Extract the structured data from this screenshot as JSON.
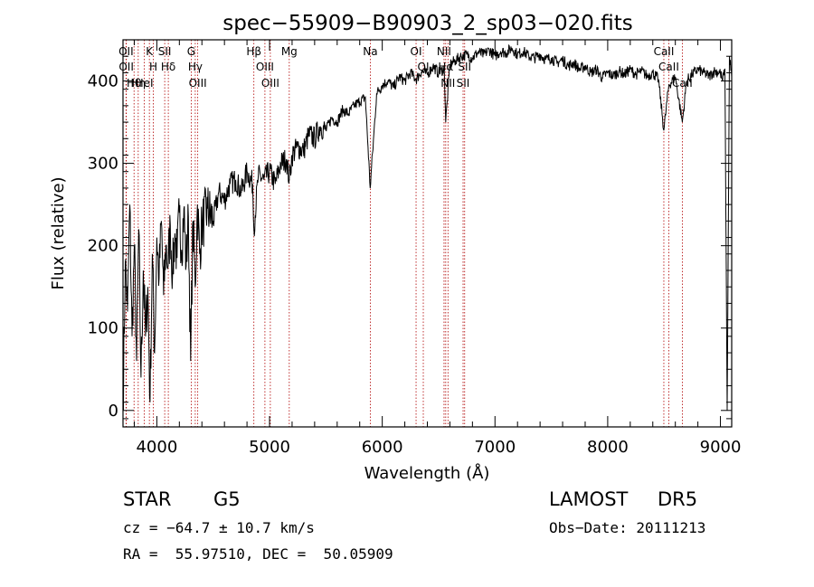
{
  "chart_data": {
    "type": "line",
    "title": "spec−55909−B90903_2_sp03−020.fits",
    "xlabel": "Wavelength (Å)",
    "ylabel": "Flux (relative)",
    "xlim": [
      3700,
      9100
    ],
    "ylim": [
      -20,
      450
    ],
    "x_ticks": [
      4000,
      5000,
      6000,
      7000,
      8000,
      9000
    ],
    "y_ticks": [
      0,
      100,
      200,
      300,
      400
    ],
    "grid": false,
    "series": [
      {
        "color": "#000000",
        "x": [
          3700,
          3720,
          3740,
          3760,
          3780,
          3800,
          3820,
          3840,
          3860,
          3880,
          3900,
          3920,
          3940,
          3960,
          3980,
          4000,
          4020,
          4040,
          4060,
          4080,
          4100,
          4120,
          4140,
          4160,
          4180,
          4200,
          4220,
          4240,
          4260,
          4280,
          4300,
          4320,
          4340,
          4360,
          4380,
          4400,
          4450,
          4500,
          4550,
          4600,
          4650,
          4700,
          4750,
          4800,
          4850,
          4861,
          4900,
          4950,
          5000,
          5050,
          5100,
          5150,
          5175,
          5200,
          5250,
          5300,
          5350,
          5400,
          5450,
          5500,
          5550,
          5600,
          5650,
          5700,
          5750,
          5800,
          5850,
          5893,
          5950,
          6000,
          6050,
          6100,
          6150,
          6200,
          6250,
          6300,
          6350,
          6400,
          6450,
          6500,
          6550,
          6563,
          6600,
          6650,
          6700,
          6750,
          6800,
          6850,
          6900,
          6950,
          7000,
          7050,
          7100,
          7150,
          7200,
          7250,
          7300,
          7350,
          7400,
          7450,
          7500,
          7550,
          7600,
          7650,
          7700,
          7750,
          7800,
          7850,
          7900,
          7950,
          8000,
          8050,
          8100,
          8150,
          8200,
          8250,
          8300,
          8350,
          8400,
          8450,
          8498,
          8542,
          8600,
          8662,
          8700,
          8750,
          8800,
          8850,
          8900,
          8950,
          9000,
          9020,
          9040,
          9060,
          9080,
          9100
        ],
        "y": [
          0,
          180,
          120,
          250,
          90,
          200,
          60,
          220,
          40,
          170,
          90,
          150,
          10,
          190,
          70,
          210,
          160,
          230,
          140,
          200,
          175,
          225,
          165,
          215,
          185,
          240,
          195,
          245,
          175,
          235,
          60,
          230,
          150,
          250,
          190,
          225,
          245,
          230,
          265,
          255,
          275,
          280,
          265,
          290,
          275,
          220,
          285,
          280,
          290,
          275,
          300,
          305,
          280,
          310,
          320,
          315,
          335,
          330,
          345,
          340,
          355,
          350,
          365,
          360,
          370,
          375,
          380,
          270,
          385,
          395,
          400,
          392,
          405,
          400,
          410,
          402,
          412,
          408,
          418,
          410,
          415,
          350,
          420,
          425,
          430,
          432,
          428,
          435,
          432,
          438,
          430,
          436,
          434,
          440,
          432,
          436,
          430,
          428,
          432,
          426,
          428,
          422,
          426,
          418,
          422,
          414,
          418,
          410,
          414,
          404,
          410,
          406,
          412,
          408,
          414,
          408,
          412,
          406,
          410,
          402,
          340,
          395,
          405,
          350,
          400,
          408,
          414,
          410,
          406,
          412,
          410,
          400,
          415,
          0,
          430,
          405
        ]
      }
    ],
    "line_markers": [
      {
        "label": "Hθ",
        "x": 3798
      },
      {
        "label": "OII",
        "x": 3727
      },
      {
        "label": "OII",
        "x": 3729
      },
      {
        "label": "Hη",
        "x": 3835
      },
      {
        "label": "K",
        "x": 3934
      },
      {
        "label": "HeI",
        "x": 3889
      },
      {
        "label": "H",
        "x": 3969
      },
      {
        "label": "SII",
        "x": 4070
      },
      {
        "label": "Hδ",
        "x": 4102
      },
      {
        "label": "OIII",
        "x": 4363
      },
      {
        "label": "Hγ",
        "x": 4341
      },
      {
        "label": "G",
        "x": 4305
      },
      {
        "label": "OIII",
        "x": 5007
      },
      {
        "label": "OIII",
        "x": 4959
      },
      {
        "label": "Hβ",
        "x": 4861
      },
      {
        "label": "Mg",
        "x": 5175
      },
      {
        "label": "Na",
        "x": 5894
      },
      {
        "label": "OI",
        "x": 6300
      },
      {
        "label": "OI",
        "x": 6364
      },
      {
        "label": "Hα",
        "x": 6563
      },
      {
        "label": "NII",
        "x": 6548
      },
      {
        "label": "NII",
        "x": 6583
      },
      {
        "label": "SII",
        "x": 6717
      },
      {
        "label": "SII",
        "x": 6731
      },
      {
        "label": "CaII",
        "x": 8542
      },
      {
        "label": "CaII",
        "x": 8498
      },
      {
        "label": "CaII",
        "x": 8662
      }
    ]
  },
  "info": {
    "class_label": "STAR",
    "subclass": "G5",
    "survey": "LAMOST",
    "release": "DR5",
    "cz_text": "cz = −64.7 ± 10.7 km/s",
    "obs_date": "Obs−Date: 20111213",
    "coords": "RA =  55.97510, DEC =  50.05909"
  },
  "colors": {
    "spectrum": "#000000",
    "line_marker": "#b00000"
  }
}
